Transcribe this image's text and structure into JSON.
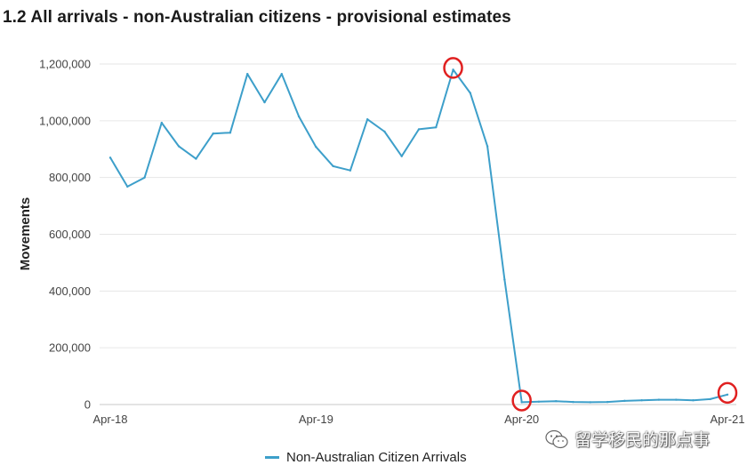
{
  "chart_data": {
    "type": "line",
    "title": "1.2 All arrivals - non-Australian citizens - provisional estimates",
    "xlabel": "",
    "ylabel": "Movements",
    "ylim": [
      0,
      1200000
    ],
    "yticks": [
      0,
      200000,
      400000,
      600000,
      800000,
      1000000,
      1200000
    ],
    "ytick_labels": [
      "0",
      "200,000",
      "400,000",
      "600,000",
      "800,000",
      "1,000,000",
      "1,200,000"
    ],
    "x_tick_labels": [
      "Apr-18",
      "Apr-19",
      "Apr-20",
      "Apr-21"
    ],
    "x_tick_indices": [
      0,
      12,
      24,
      36
    ],
    "grid": "horizontal",
    "legend": "bottom",
    "series": [
      {
        "name": "Non-Australian Citizen Arrivals",
        "color": "#3d9fca",
        "values": [
          870000,
          768000,
          800000,
          993000,
          910000,
          866000,
          955000,
          958000,
          1165000,
          1065000,
          1165000,
          1015000,
          908000,
          840000,
          825000,
          1005000,
          962000,
          875000,
          970000,
          977000,
          1180000,
          1098000,
          910000,
          440000,
          8000,
          10000,
          12000,
          9000,
          8000,
          9000,
          13000,
          15000,
          17000,
          17000,
          15000,
          19000,
          35000
        ]
      }
    ],
    "annotations": [
      {
        "type": "circle",
        "color": "#e02020",
        "index": 20
      },
      {
        "type": "circle",
        "color": "#e02020",
        "index": 24
      },
      {
        "type": "circle",
        "color": "#e02020",
        "index": 36
      }
    ]
  },
  "watermark": "留学移民的那点事",
  "colors": {
    "gridline": "#e6e6e6",
    "axis": "#c8c8c8",
    "annotation": "#e02020"
  }
}
